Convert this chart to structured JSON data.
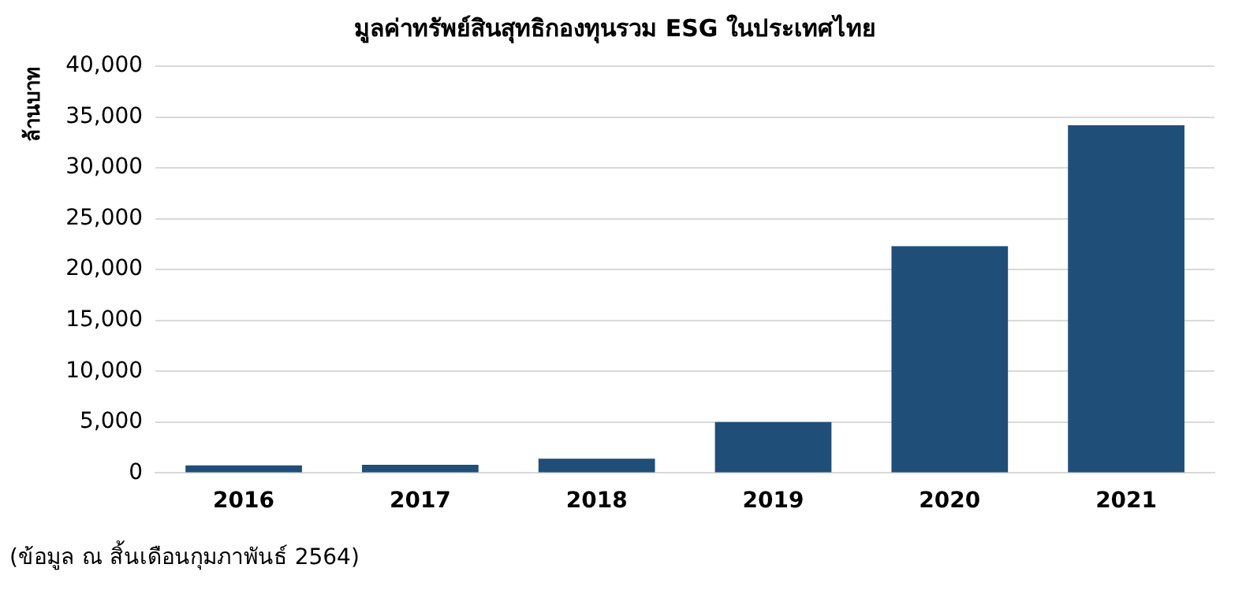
{
  "chart_data": {
    "type": "bar",
    "title": "มูลค่าทรัพย์สินสุทธิกองทุนรวม ESG ในประเทศไทย",
    "ylabel": "ล้านบาท",
    "categories": [
      "2016",
      "2017",
      "2018",
      "2019",
      "2020",
      "2021"
    ],
    "values": [
      750,
      800,
      1400,
      5000,
      22300,
      34200
    ],
    "color": "#1f4e79",
    "ylim": [
      0,
      40000
    ],
    "yticks": [
      {
        "value": 0,
        "label": "0"
      },
      {
        "value": 5000,
        "label": "5,000"
      },
      {
        "value": 10000,
        "label": "10,000"
      },
      {
        "value": 15000,
        "label": "15,000"
      },
      {
        "value": 20000,
        "label": "20,000"
      },
      {
        "value": 25000,
        "label": "25,000"
      },
      {
        "value": 30000,
        "label": "30,000"
      },
      {
        "value": 35000,
        "label": "35,000"
      },
      {
        "value": 40000,
        "label": "40,000"
      }
    ],
    "grid": "y",
    "legend": false,
    "annotations": [
      "(ข้อมูล ณ สิ้นเดือนกุมภาพันธ์ 2564)"
    ]
  }
}
